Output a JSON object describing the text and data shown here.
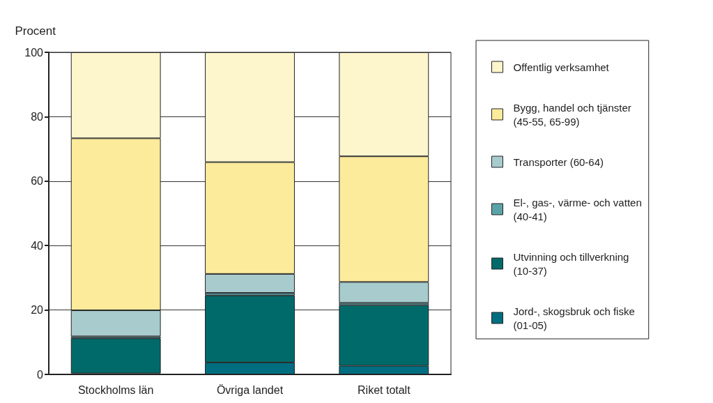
{
  "chart_data": {
    "type": "bar",
    "stacked": true,
    "ylabel": "Procent",
    "categories": [
      "Stockholms län",
      "Övriga landet",
      "Riket totalt"
    ],
    "series": [
      {
        "name": "Jord-, skogsbruk och fiske\n(01-05)",
        "color": "#006e80",
        "values": [
          0.3,
          3.7,
          2.7
        ]
      },
      {
        "name": "Utvinning och tillverkning\n(10-37)",
        "color": "#006a6a",
        "values": [
          10.9,
          20.8,
          18.8
        ]
      },
      {
        "name": "El-, gas-, värme- och vatten\n(40-41)",
        "color": "#5ba3a8",
        "values": [
          0.6,
          0.8,
          0.7
        ]
      },
      {
        "name": "Transporter (60-64)",
        "color": "#a8cbce",
        "values": [
          8.1,
          5.9,
          6.5
        ]
      },
      {
        "name": "Bygg, handel och tjänster\n(45-55, 65-99)",
        "color": "#fdeb9c",
        "values": [
          53.4,
          34.7,
          39.0
        ]
      },
      {
        "name": "Offentlig verksamhet",
        "color": "#fdf5cc",
        "values": [
          26.7,
          34.1,
          32.3
        ]
      }
    ],
    "ylim": [
      0,
      100
    ],
    "yticks": [
      0,
      20,
      40,
      60,
      80,
      100
    ],
    "grid": "y",
    "legend": "right"
  }
}
